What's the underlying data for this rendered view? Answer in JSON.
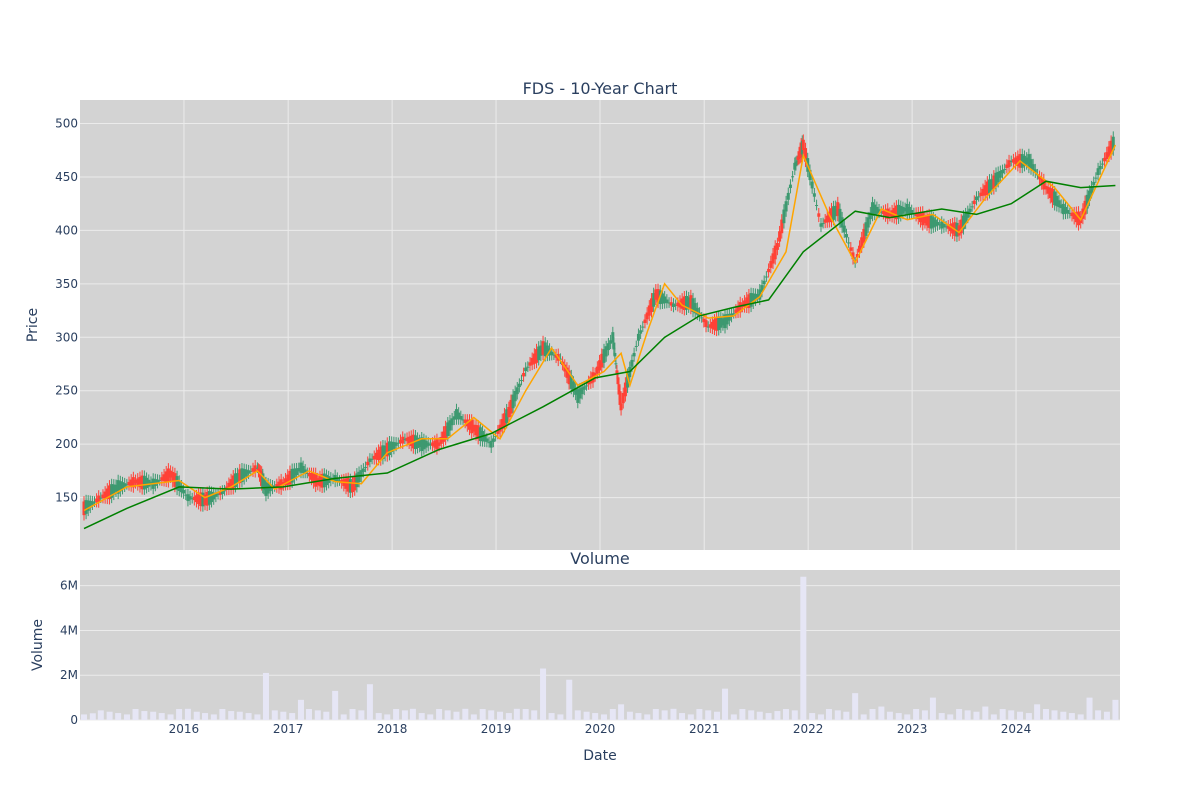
{
  "chart_data": [
    {
      "type": "candlestick",
      "title": "FDS - 10-Year Chart",
      "ylabel": "Price",
      "xlabel": "",
      "x_range": [
        "2015-01-01",
        "2024-12-31"
      ],
      "ylim": [
        101,
        522
      ],
      "y_ticks": [
        150,
        200,
        250,
        300,
        350,
        400,
        450,
        500
      ],
      "grid": true,
      "colors": {
        "up": "#3d9970",
        "down": "#ff4136",
        "ma_short": "#ffa500",
        "ma_long": "#008000",
        "background": "#d3d3d3"
      },
      "series": [
        {
          "values": [
            {
              "x": "2015-01",
              "y": 140
            },
            {
              "x": "2015-03",
              "y": 150
            },
            {
              "x": "2015-05",
              "y": 160
            },
            {
              "x": "2015-07",
              "y": 165
            },
            {
              "x": "2015-09",
              "y": 163
            },
            {
              "x": "2015-11",
              "y": 172
            },
            {
              "x": "2016-01",
              "y": 150
            },
            {
              "x": "2016-03",
              "y": 148
            },
            {
              "x": "2016-05",
              "y": 155
            },
            {
              "x": "2016-07",
              "y": 170
            },
            {
              "x": "2016-09",
              "y": 178
            },
            {
              "x": "2016-10",
              "y": 158
            },
            {
              "x": "2016-12",
              "y": 163
            },
            {
              "x": "2017-02",
              "y": 178
            },
            {
              "x": "2017-04",
              "y": 165
            },
            {
              "x": "2017-06",
              "y": 168
            },
            {
              "x": "2017-08",
              "y": 160
            },
            {
              "x": "2017-10",
              "y": 185
            },
            {
              "x": "2017-12",
              "y": 195
            },
            {
              "x": "2018-02",
              "y": 205
            },
            {
              "x": "2018-04",
              "y": 200
            },
            {
              "x": "2018-06",
              "y": 200
            },
            {
              "x": "2018-08",
              "y": 228
            },
            {
              "x": "2018-10",
              "y": 215
            },
            {
              "x": "2018-12",
              "y": 200
            },
            {
              "x": "2019-02",
              "y": 230
            },
            {
              "x": "2019-04",
              "y": 270
            },
            {
              "x": "2019-06",
              "y": 290
            },
            {
              "x": "2019-08",
              "y": 280
            },
            {
              "x": "2019-10",
              "y": 245
            },
            {
              "x": "2019-12",
              "y": 265
            },
            {
              "x": "2020-02",
              "y": 300
            },
            {
              "x": "2020-03",
              "y": 235
            },
            {
              "x": "2020-05",
              "y": 300
            },
            {
              "x": "2020-07",
              "y": 340
            },
            {
              "x": "2020-09",
              "y": 330
            },
            {
              "x": "2020-11",
              "y": 333
            },
            {
              "x": "2021-01",
              "y": 310
            },
            {
              "x": "2021-03",
              "y": 315
            },
            {
              "x": "2021-05",
              "y": 330
            },
            {
              "x": "2021-07",
              "y": 340
            },
            {
              "x": "2021-09",
              "y": 385
            },
            {
              "x": "2021-11",
              "y": 460
            },
            {
              "x": "2021-12",
              "y": 480
            },
            {
              "x": "2022-02",
              "y": 405
            },
            {
              "x": "2022-04",
              "y": 420
            },
            {
              "x": "2022-06",
              "y": 370
            },
            {
              "x": "2022-08",
              "y": 420
            },
            {
              "x": "2022-10",
              "y": 415
            },
            {
              "x": "2022-12",
              "y": 420
            },
            {
              "x": "2023-02",
              "y": 410
            },
            {
              "x": "2023-04",
              "y": 405
            },
            {
              "x": "2023-06",
              "y": 400
            },
            {
              "x": "2023-08",
              "y": 430
            },
            {
              "x": "2023-10",
              "y": 445
            },
            {
              "x": "2023-12",
              "y": 465
            },
            {
              "x": "2024-02",
              "y": 465
            },
            {
              "x": "2024-04",
              "y": 440
            },
            {
              "x": "2024-06",
              "y": 420
            },
            {
              "x": "2024-08",
              "y": 410
            },
            {
              "x": "2024-10",
              "y": 455
            },
            {
              "x": "2024-12",
              "y": 485
            }
          ]
        },
        {
          "values": [
            {
              "x": "2015-01",
              "y": 138
            },
            {
              "x": "2015-06",
              "y": 160
            },
            {
              "x": "2015-12",
              "y": 166
            },
            {
              "x": "2016-03",
              "y": 150
            },
            {
              "x": "2016-06",
              "y": 160
            },
            {
              "x": "2016-09",
              "y": 175
            },
            {
              "x": "2016-11",
              "y": 158
            },
            {
              "x": "2017-03",
              "y": 175
            },
            {
              "x": "2017-06",
              "y": 165
            },
            {
              "x": "2017-09",
              "y": 163
            },
            {
              "x": "2017-12",
              "y": 192
            },
            {
              "x": "2018-04",
              "y": 205
            },
            {
              "x": "2018-07",
              "y": 205
            },
            {
              "x": "2018-10",
              "y": 225
            },
            {
              "x": "2019-01",
              "y": 205
            },
            {
              "x": "2019-04",
              "y": 250
            },
            {
              "x": "2019-07",
              "y": 290
            },
            {
              "x": "2019-10",
              "y": 255
            },
            {
              "x": "2020-01",
              "y": 268
            },
            {
              "x": "2020-03",
              "y": 285
            },
            {
              "x": "2020-04",
              "y": 255
            },
            {
              "x": "2020-06",
              "y": 305
            },
            {
              "x": "2020-08",
              "y": 350
            },
            {
              "x": "2020-10",
              "y": 330
            },
            {
              "x": "2021-01",
              "y": 318
            },
            {
              "x": "2021-04",
              "y": 320
            },
            {
              "x": "2021-07",
              "y": 338
            },
            {
              "x": "2021-10",
              "y": 380
            },
            {
              "x": "2021-12",
              "y": 470
            },
            {
              "x": "2022-03",
              "y": 415
            },
            {
              "x": "2022-06",
              "y": 370
            },
            {
              "x": "2022-09",
              "y": 420
            },
            {
              "x": "2022-12",
              "y": 410
            },
            {
              "x": "2023-03",
              "y": 415
            },
            {
              "x": "2023-06",
              "y": 398
            },
            {
              "x": "2023-09",
              "y": 430
            },
            {
              "x": "2024-01",
              "y": 465
            },
            {
              "x": "2024-05",
              "y": 440
            },
            {
              "x": "2024-08",
              "y": 410
            },
            {
              "x": "2024-12",
              "y": 480
            }
          ]
        },
        {
          "values": [
            {
              "x": "2015-01",
              "y": 121
            },
            {
              "x": "2015-06",
              "y": 140
            },
            {
              "x": "2015-12",
              "y": 160
            },
            {
              "x": "2016-06",
              "y": 158
            },
            {
              "x": "2016-12",
              "y": 160
            },
            {
              "x": "2017-06",
              "y": 168
            },
            {
              "x": "2017-12",
              "y": 173
            },
            {
              "x": "2018-06",
              "y": 195
            },
            {
              "x": "2018-12",
              "y": 210
            },
            {
              "x": "2019-06",
              "y": 235
            },
            {
              "x": "2019-12",
              "y": 262
            },
            {
              "x": "2020-04",
              "y": 268
            },
            {
              "x": "2020-08",
              "y": 300
            },
            {
              "x": "2020-12",
              "y": 320
            },
            {
              "x": "2021-04",
              "y": 328
            },
            {
              "x": "2021-08",
              "y": 335
            },
            {
              "x": "2021-12",
              "y": 380
            },
            {
              "x": "2022-06",
              "y": 418
            },
            {
              "x": "2022-10",
              "y": 412
            },
            {
              "x": "2023-04",
              "y": 420
            },
            {
              "x": "2023-08",
              "y": 415
            },
            {
              "x": "2023-12",
              "y": 425
            },
            {
              "x": "2024-04",
              "y": 446
            },
            {
              "x": "2024-08",
              "y": 440
            },
            {
              "x": "2024-12",
              "y": 442
            }
          ]
        }
      ]
    },
    {
      "type": "bar",
      "title": "Volume",
      "ylabel": "Volume",
      "xlabel": "Date",
      "x_range": [
        "2015-01-01",
        "2024-12-31"
      ],
      "ylim": [
        0,
        6700000
      ],
      "y_ticks": [
        0,
        2000000,
        4000000,
        6000000
      ],
      "y_tick_labels": [
        "0",
        "2M",
        "4M",
        "6M"
      ],
      "x_ticks": [
        "2016",
        "2017",
        "2018",
        "2019",
        "2020",
        "2021",
        "2022",
        "2023",
        "2024"
      ],
      "grid": true,
      "colors": {
        "bars": "#e6e6f5",
        "background": "#d3d3d3"
      },
      "series": [
        {
          "values": [
            {
              "x": "2015-02",
              "y": 300000
            },
            {
              "x": "2015-08",
              "y": 400000
            },
            {
              "x": "2016-01",
              "y": 500000
            },
            {
              "x": "2016-06",
              "y": 400000
            },
            {
              "x": "2016-10",
              "y": 2100000
            },
            {
              "x": "2017-02",
              "y": 900000
            },
            {
              "x": "2017-06",
              "y": 1300000
            },
            {
              "x": "2017-10",
              "y": 1600000
            },
            {
              "x": "2018-03",
              "y": 500000
            },
            {
              "x": "2018-09",
              "y": 500000
            },
            {
              "x": "2019-03",
              "y": 500000
            },
            {
              "x": "2019-06",
              "y": 2300000
            },
            {
              "x": "2019-09",
              "y": 1800000
            },
            {
              "x": "2020-03",
              "y": 700000
            },
            {
              "x": "2020-09",
              "y": 500000
            },
            {
              "x": "2021-03",
              "y": 1400000
            },
            {
              "x": "2021-09",
              "y": 400000
            },
            {
              "x": "2021-12",
              "y": 6400000
            },
            {
              "x": "2022-06",
              "y": 1200000
            },
            {
              "x": "2022-09",
              "y": 600000
            },
            {
              "x": "2023-03",
              "y": 1000000
            },
            {
              "x": "2023-09",
              "y": 600000
            },
            {
              "x": "2024-03",
              "y": 700000
            },
            {
              "x": "2024-09",
              "y": 1000000
            },
            {
              "x": "2024-12",
              "y": 900000
            }
          ]
        }
      ]
    }
  ]
}
